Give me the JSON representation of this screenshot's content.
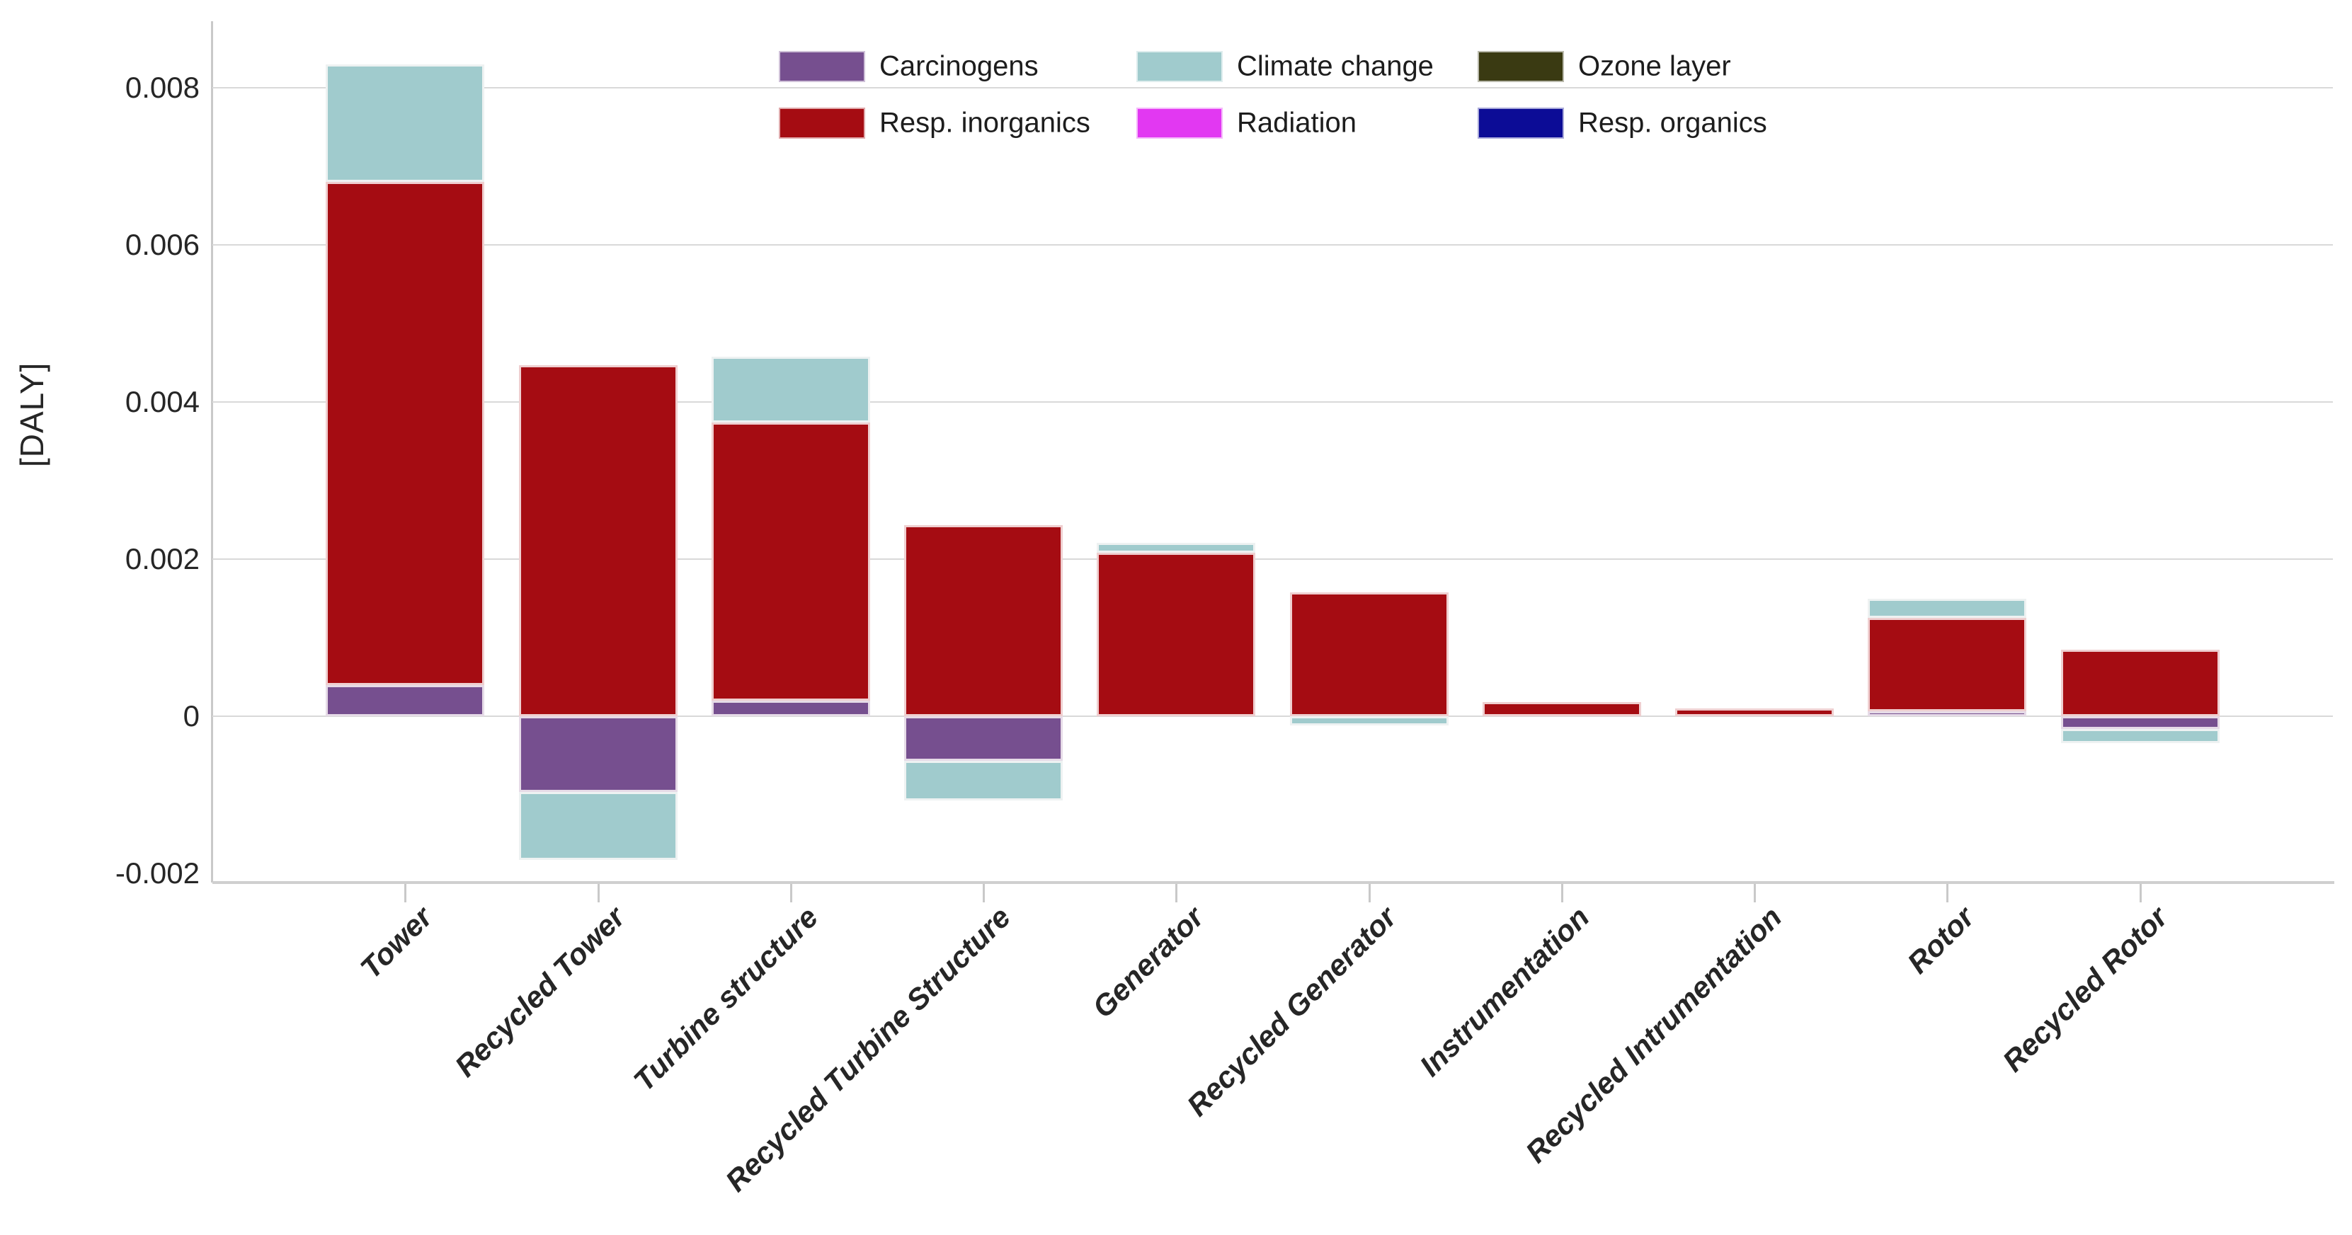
{
  "chart_data": {
    "type": "bar",
    "stacked": true,
    "title": "",
    "ylabel": "[DALY]",
    "xlabel": "",
    "ylim": [
      -0.0021,
      0.00885
    ],
    "grid": "horizontal",
    "legend_position": "top-center",
    "categories": [
      "Tower",
      "Recycled Tower",
      "Turbine structure",
      "Recycled Turbine Structure",
      "Generator",
      "Recycled Generator",
      "Instrumentation",
      "Recycled Intrumentation",
      "Rotor",
      "Recycled Rotor"
    ],
    "yticks": [
      {
        "v": 0.008,
        "label": "0.008"
      },
      {
        "v": 0.006,
        "label": "0.006"
      },
      {
        "v": 0.004,
        "label": "0.004"
      },
      {
        "v": 0.002,
        "label": "0.002"
      },
      {
        "v": 0,
        "label": "0"
      },
      {
        "v": -0.002,
        "label": "-0.002"
      }
    ],
    "series": [
      {
        "name": "Carcinogens",
        "color_key": "carcinogens",
        "values": [
          0.0004,
          -0.00096,
          0.0002,
          -0.00057,
          0,
          0,
          0,
          0,
          6e-05,
          -0.00016
        ]
      },
      {
        "name": "Resp. inorganics",
        "color_key": "resp_inorganics",
        "values": [
          0.0064,
          0.00447,
          0.00354,
          0.00243,
          0.00208,
          0.00158,
          0.00018,
          0.0001,
          0.00119,
          0.00085
        ]
      },
      {
        "name": "Climate change",
        "color_key": "climate_change",
        "values": [
          0.0015,
          -0.00087,
          0.00084,
          -0.0005,
          0.00013,
          -0.00012,
          0,
          0,
          0.00025,
          -0.00018
        ]
      },
      {
        "name": "Ozone layer",
        "color_key": "ozone_layer",
        "values": [
          0,
          0,
          0,
          0,
          0,
          0,
          0,
          0,
          0,
          0
        ]
      },
      {
        "name": "Radiation",
        "color_key": "radiation",
        "values": [
          0,
          0,
          0,
          0,
          0,
          0,
          0,
          0,
          0,
          0
        ]
      },
      {
        "name": "Resp. organics",
        "color_key": "resp_organics",
        "values": [
          0,
          0,
          0,
          0,
          0,
          0,
          0,
          0,
          0,
          0
        ]
      }
    ]
  },
  "legend": {
    "items": [
      {
        "label": "Carcinogens",
        "key": "carcinogens"
      },
      {
        "label": "Climate change",
        "key": "climate_change"
      },
      {
        "label": "Ozone layer",
        "key": "ozone_layer"
      },
      {
        "label": "Resp. inorganics",
        "key": "resp_inorganics"
      },
      {
        "label": "Radiation",
        "key": "radiation"
      },
      {
        "label": "Resp. organics",
        "key": "resp_organics"
      }
    ]
  },
  "colors": {
    "carcinogens": "#764f8f",
    "resp_inorganics": "#a50c12",
    "climate_change": "#a0cbcd",
    "ozone_layer": "#3a3a12",
    "radiation": "#e238f2",
    "resp_organics": "#0c0c96",
    "gridline": "#d9d9d9",
    "axis": "#c9c9c9",
    "text": "#262626"
  }
}
